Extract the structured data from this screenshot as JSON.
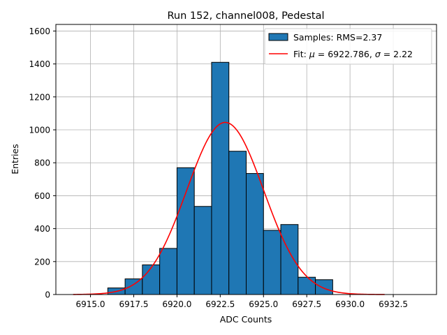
{
  "chart_data": {
    "type": "bar",
    "title": "Run 152, channel008, Pedestal",
    "xlabel": "ADC Counts",
    "ylabel": "Entries",
    "xlim": [
      6913.0,
      6935.0
    ],
    "ylim": [
      0,
      1640
    ],
    "grid": true,
    "legend_position": "top-right",
    "x_ticks": [
      6915.0,
      6917.5,
      6920.0,
      6922.5,
      6925.0,
      6927.5,
      6930.0,
      6932.5
    ],
    "x_tick_labels": [
      "6915.0",
      "6917.5",
      "6920.0",
      "6922.5",
      "6925.0",
      "6927.5",
      "6930.0",
      "6932.5"
    ],
    "y_ticks": [
      0,
      200,
      400,
      600,
      800,
      1000,
      1200,
      1400,
      1600
    ],
    "y_tick_labels": [
      "0",
      "200",
      "400",
      "600",
      "800",
      "1000",
      "1200",
      "1400",
      "1600"
    ],
    "histogram": {
      "name": "Samples: RMS=2.37",
      "color": "#1f77b4",
      "edge_color": "#000000",
      "bin_edges": [
        6916.0,
        6917.0,
        6918.0,
        6919.0,
        6920.0,
        6921.0,
        6922.0,
        6923.0,
        6924.0,
        6925.0,
        6926.0,
        6927.0,
        6928.0,
        6929.0
      ],
      "counts": [
        40,
        95,
        180,
        280,
        770,
        535,
        1410,
        870,
        735,
        390,
        425,
        105,
        90
      ]
    },
    "fit": {
      "name": "Fit: μ = 6922.786, σ = 2.22",
      "color": "#ff0000",
      "mu": 6922.786,
      "sigma": 2.22,
      "amplitude": 1045,
      "x_range": [
        6914.0,
        6932.0
      ]
    },
    "legend": {
      "samples_label": "Samples: RMS=2.37",
      "fit_prefix": "Fit: ",
      "fit_mu_symbol": "μ",
      "fit_mu_value": " = 6922.786, ",
      "fit_sigma_symbol": "σ",
      "fit_sigma_value": " = 2.22"
    }
  }
}
